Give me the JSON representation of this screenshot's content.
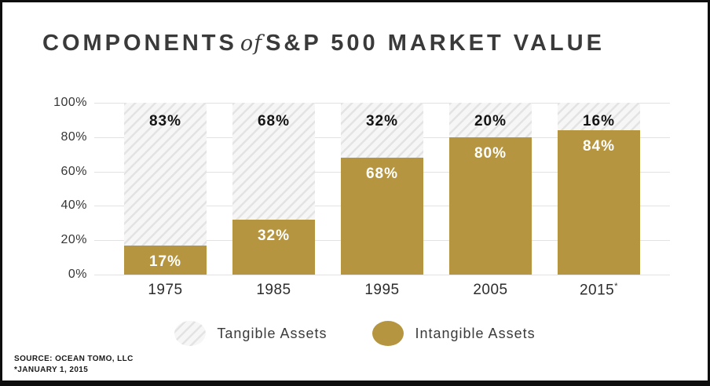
{
  "title": {
    "part1": "COMPONENTS",
    "part2": "of",
    "part3": "S&P 500 MARKET VALUE"
  },
  "chart_data": {
    "type": "bar",
    "stacked": true,
    "title": "COMPONENTS of S&P 500 MARKET VALUE",
    "categories": [
      "1975",
      "1985",
      "1995",
      "2005",
      "2015*"
    ],
    "series": [
      {
        "name": "Tangible Assets",
        "style": "hatch",
        "values": [
          83,
          68,
          32,
          20,
          16
        ]
      },
      {
        "name": "Intangible Assets",
        "style": "solid",
        "values": [
          17,
          32,
          68,
          80,
          84
        ]
      }
    ],
    "value_suffix": "%",
    "ylim": [
      0,
      100
    ],
    "yticks": [
      0,
      20,
      40,
      60,
      80,
      100
    ],
    "ytick_suffix": "%",
    "grid": true,
    "legend_position": "bottom"
  },
  "legend": [
    {
      "label": "Tangible Assets",
      "swatch": "hatch"
    },
    {
      "label": "Intangible Assets",
      "swatch": "solid"
    }
  ],
  "source": {
    "line1": "SOURCE: OCEAN TOMO, LLC",
    "line2": "*JANUARY 1, 2015"
  },
  "colors": {
    "intangible": "#B5953F",
    "tangible_hatch_line": "#E3E3E3",
    "tangible_hatch_bg": "#F6F6F6",
    "grid": "#E2E2E2",
    "title_text": "#3A3A3A",
    "tangible_label": "#141414",
    "intangible_label": "#FFFFFF",
    "frame_border": "#0E0E0E"
  }
}
